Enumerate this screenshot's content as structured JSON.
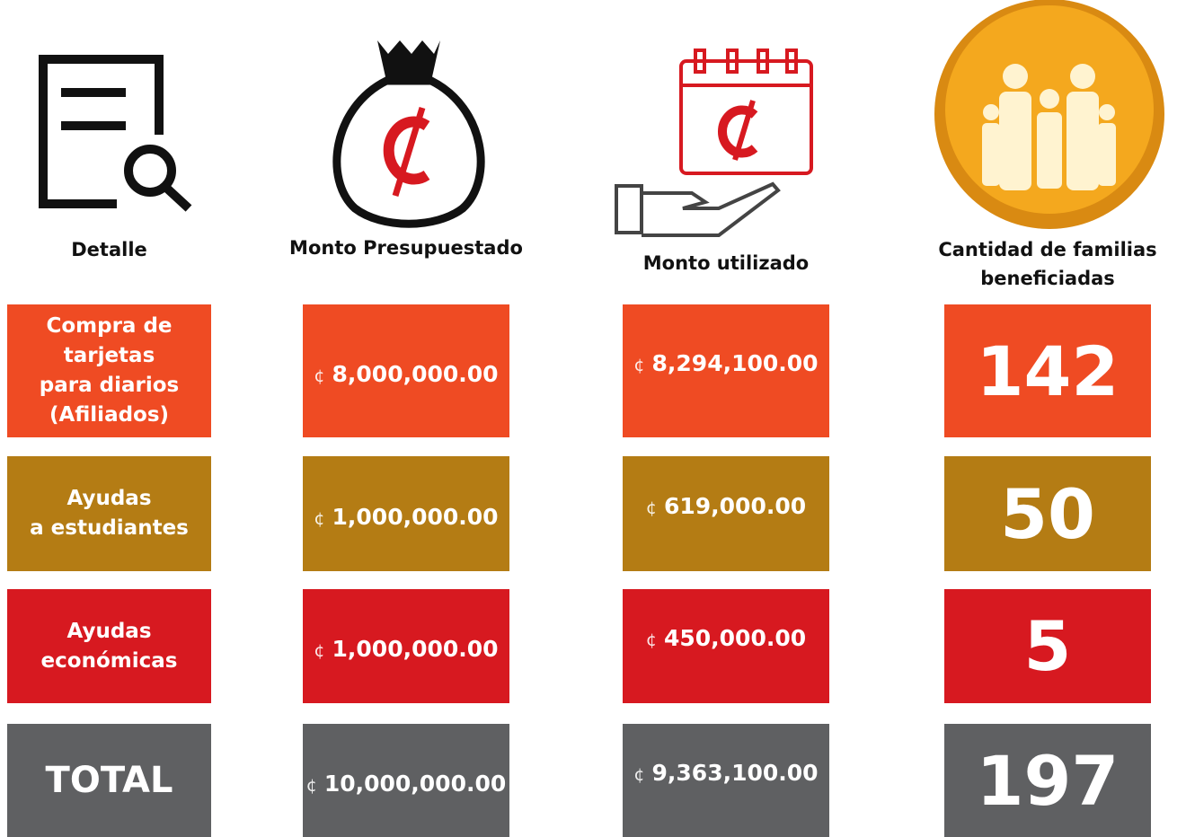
{
  "header": {
    "columns": [
      {
        "lines": [
          "Detalle"
        ]
      },
      {
        "lines": [
          "Monto Presupuestado"
        ]
      },
      {
        "lines": [
          "Monto utilizado"
        ]
      },
      {
        "lines": [
          "Cantidad de familias",
          "beneficiadas"
        ]
      }
    ]
  },
  "table": {
    "rows": [
      {
        "color": "#ef4b23",
        "detail": [
          "Compra de",
          "tarjetas",
          "para diarios",
          "(Afiliados)"
        ],
        "budget": {
          "currency": "¢",
          "amount": "8,000,000.00"
        },
        "used": {
          "currency": "¢",
          "amount": "8,294,100.00"
        },
        "families": "142"
      },
      {
        "color": "#b47c14",
        "detail": [
          "Ayudas",
          "a estudiantes"
        ],
        "budget": {
          "currency": "¢",
          "amount": "1,000,000.00"
        },
        "used": {
          "currency": "¢",
          "amount": "619,000.00"
        },
        "families": "50"
      },
      {
        "color": "#d71920",
        "detail": [
          "Ayudas",
          "económicas"
        ],
        "budget": {
          "currency": "¢",
          "amount": "1,000,000.00"
        },
        "used": {
          "currency": "¢",
          "amount": "450,000.00"
        },
        "families": "5"
      },
      {
        "color": "#5f6062",
        "detail": [
          "TOTAL"
        ],
        "budget": {
          "currency": "¢",
          "amount": "10,000,000.00"
        },
        "used": {
          "currency": "¢",
          "amount": "9,363,100.00"
        },
        "families": "197"
      }
    ]
  }
}
